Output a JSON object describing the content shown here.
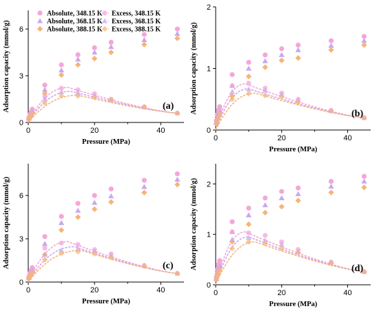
{
  "colors": {
    "348.15 K": "#f5a6d8",
    "368.15 K": "#c9a8ee",
    "388.15 K": "#f6b477"
  },
  "legend": {
    "items": [
      {
        "label": "Absolute, 348.15 K",
        "kind": "absolute",
        "temp": "348.15 K",
        "marker": "circle"
      },
      {
        "label": "Absolute, 368.15 K",
        "kind": "absolute",
        "temp": "368.15 K",
        "marker": "triangle"
      },
      {
        "label": "Absolute, 388.15 K",
        "kind": "absolute",
        "temp": "388.15 K",
        "marker": "diamond"
      },
      {
        "label": "Excess, 348.15 K",
        "kind": "excess",
        "temp": "348.15 K",
        "marker": "circle"
      },
      {
        "label": "Excess, 368.15 K",
        "kind": "excess",
        "temp": "368.15 K",
        "marker": "triangle"
      },
      {
        "label": "Excess, 388.15 K",
        "kind": "excess",
        "temp": "388.15 K",
        "marker": "diamond"
      }
    ]
  },
  "chart_data": [
    {
      "type": "scatter",
      "panel_label": "(a)",
      "xlabel": "Pressure (MPa)",
      "ylabel": "Adsorption capacity (mmol/g)",
      "xlim": [
        0,
        47
      ],
      "ylim": [
        0,
        7.2
      ],
      "xticks": [
        0,
        20,
        40
      ],
      "yticks": [
        0,
        3,
        6
      ],
      "legend_position": "top-left",
      "x": [
        0.2,
        0.5,
        0.8,
        1.2,
        5,
        10,
        15,
        20,
        25,
        35,
        45
      ],
      "series": [
        {
          "name": "Absolute, 348.15 K",
          "values": [
            0.3,
            0.5,
            0.65,
            0.85,
            2.4,
            3.7,
            4.35,
            4.8,
            5.15,
            5.65,
            6.0
          ]
        },
        {
          "name": "Absolute, 368.15 K",
          "values": [
            0.25,
            0.45,
            0.6,
            0.75,
            2.1,
            3.35,
            4.05,
            4.5,
            4.85,
            5.3,
            5.7
          ]
        },
        {
          "name": "Absolute, 388.15 K",
          "values": [
            0.2,
            0.4,
            0.5,
            0.65,
            1.85,
            3.05,
            3.7,
            4.1,
            4.5,
            5.0,
            5.4
          ]
        },
        {
          "name": "Excess, 348.15 K",
          "values": [
            0.3,
            0.5,
            0.6,
            0.75,
            1.65,
            2.2,
            2.1,
            1.85,
            1.5,
            1.0,
            0.6
          ]
        },
        {
          "name": "Excess, 368.15 K",
          "values": [
            0.25,
            0.4,
            0.55,
            0.65,
            1.5,
            1.95,
            1.9,
            1.75,
            1.45,
            1.0,
            0.6
          ]
        },
        {
          "name": "Excess, 388.15 K",
          "values": [
            0.2,
            0.35,
            0.45,
            0.55,
            1.25,
            1.7,
            1.7,
            1.6,
            1.45,
            1.0,
            0.6
          ]
        }
      ],
      "fit_peaks": {
        "348.15 K": [
          12,
          2.25
        ],
        "368.15 K": [
          13,
          2.0
        ],
        "388.15 K": [
          15,
          1.75
        ]
      }
    },
    {
      "type": "scatter",
      "panel_label": "(b)",
      "xlabel": "Pressure (MPa)",
      "ylabel": "Adsorption capacity (mmol/g)",
      "xlim": [
        0,
        47
      ],
      "ylim": [
        0,
        2
      ],
      "xticks": [
        0,
        20,
        40
      ],
      "yticks": [
        0,
        1,
        2
      ],
      "x": [
        0.2,
        0.5,
        0.8,
        1.2,
        5,
        10,
        15,
        20,
        25,
        35,
        45
      ],
      "series": [
        {
          "name": "Absolute, 348.15 K",
          "values": [
            0.15,
            0.25,
            0.32,
            0.38,
            0.9,
            1.1,
            1.22,
            1.32,
            1.38,
            1.45,
            1.52
          ]
        },
        {
          "name": "Absolute, 368.15 K",
          "values": [
            0.12,
            0.2,
            0.28,
            0.33,
            0.72,
            1.0,
            1.12,
            1.22,
            1.3,
            1.37,
            1.45
          ]
        },
        {
          "name": "Absolute, 388.15 K",
          "values": [
            0.1,
            0.17,
            0.23,
            0.28,
            0.55,
            0.87,
            1.02,
            1.13,
            1.17,
            1.3,
            1.38
          ]
        },
        {
          "name": "Excess, 348.15 K",
          "values": [
            0.15,
            0.24,
            0.3,
            0.35,
            0.72,
            0.76,
            0.68,
            0.6,
            0.5,
            0.32,
            0.2
          ]
        },
        {
          "name": "Excess, 368.15 K",
          "values": [
            0.12,
            0.2,
            0.26,
            0.3,
            0.62,
            0.66,
            0.64,
            0.58,
            0.48,
            0.31,
            0.2
          ]
        },
        {
          "name": "Excess, 388.15 K",
          "values": [
            0.1,
            0.16,
            0.21,
            0.26,
            0.5,
            0.59,
            0.56,
            0.54,
            0.45,
            0.31,
            0.2
          ]
        }
      ],
      "fit_peaks": {
        "348.15 K": [
          9,
          0.75
        ],
        "368.15 K": [
          10,
          0.67
        ],
        "388.15 K": [
          12,
          0.6
        ]
      }
    },
    {
      "type": "scatter",
      "panel_label": "(c)",
      "xlabel": "Pressure (MPa)",
      "ylabel": "Adsorption capacity (mmol/g)",
      "xlim": [
        0,
        47
      ],
      "ylim": [
        0,
        8.2
      ],
      "xticks": [
        0,
        20,
        40
      ],
      "yticks": [
        0,
        3,
        6
      ],
      "x": [
        0.2,
        0.5,
        0.8,
        1.2,
        5,
        10,
        15,
        20,
        25,
        35,
        45
      ],
      "series": [
        {
          "name": "Absolute, 348.15 K",
          "values": [
            0.35,
            0.6,
            0.8,
            1.0,
            3.15,
            4.55,
            5.45,
            6.0,
            6.45,
            7.05,
            7.5
          ]
        },
        {
          "name": "Absolute, 368.15 K",
          "values": [
            0.3,
            0.5,
            0.7,
            0.9,
            2.65,
            4.1,
            4.95,
            5.5,
            5.95,
            6.6,
            7.1
          ]
        },
        {
          "name": "Absolute, 388.15 K",
          "values": [
            0.25,
            0.45,
            0.6,
            0.75,
            1.9,
            3.6,
            4.5,
            5.05,
            5.55,
            6.2,
            6.75
          ]
        },
        {
          "name": "Excess, 348.15 K",
          "values": [
            0.35,
            0.55,
            0.75,
            0.9,
            2.35,
            2.7,
            2.6,
            2.25,
            1.95,
            1.15,
            0.6
          ]
        },
        {
          "name": "Excess, 368.15 K",
          "values": [
            0.3,
            0.5,
            0.65,
            0.8,
            1.9,
            2.2,
            2.3,
            2.15,
            1.85,
            1.15,
            0.6
          ]
        },
        {
          "name": "Excess, 388.15 K",
          "values": [
            0.25,
            0.4,
            0.55,
            0.65,
            1.55,
            2.0,
            2.1,
            1.95,
            1.7,
            1.1,
            0.6
          ]
        }
      ],
      "fit_peaks": {
        "348.15 K": [
          12,
          2.8
        ],
        "368.15 K": [
          14,
          2.45
        ],
        "388.15 K": [
          16,
          2.2
        ]
      }
    },
    {
      "type": "scatter",
      "panel_label": "(d)",
      "xlabel": "Pressure (MPa)",
      "ylabel": "Adsorption capacity (mmol/g)",
      "xlim": [
        0,
        47
      ],
      "ylim": [
        0,
        2.4
      ],
      "xticks": [
        0,
        20,
        40
      ],
      "yticks": [
        0,
        1,
        2
      ],
      "x": [
        0.2,
        0.5,
        0.8,
        1.2,
        5,
        10,
        15,
        20,
        25,
        35,
        45
      ],
      "series": [
        {
          "name": "Absolute, 348.15 K",
          "values": [
            0.15,
            0.3,
            0.4,
            0.48,
            1.25,
            1.52,
            1.72,
            1.85,
            1.92,
            2.05,
            2.15
          ]
        },
        {
          "name": "Absolute, 368.15 K",
          "values": [
            0.12,
            0.25,
            0.33,
            0.4,
            1.05,
            1.38,
            1.58,
            1.72,
            1.8,
            1.95,
            2.05
          ]
        },
        {
          "name": "Absolute, 388.15 K",
          "values": [
            0.1,
            0.2,
            0.27,
            0.33,
            0.85,
            1.2,
            1.43,
            1.55,
            1.67,
            1.83,
            1.93
          ]
        },
        {
          "name": "Excess, 348.15 K",
          "values": [
            0.15,
            0.28,
            0.36,
            0.43,
            1.05,
            1.03,
            0.98,
            0.85,
            0.7,
            0.45,
            0.26
          ]
        },
        {
          "name": "Excess, 368.15 K",
          "values": [
            0.12,
            0.23,
            0.3,
            0.36,
            0.9,
            0.93,
            0.88,
            0.8,
            0.66,
            0.45,
            0.26
          ]
        },
        {
          "name": "Excess, 388.15 K",
          "values": [
            0.1,
            0.18,
            0.24,
            0.29,
            0.72,
            0.85,
            0.82,
            0.72,
            0.64,
            0.43,
            0.26
          ]
        }
      ],
      "fit_peaks": {
        "348.15 K": [
          9,
          1.05
        ],
        "368.15 K": [
          10,
          0.95
        ],
        "388.15 K": [
          12,
          0.85
        ]
      }
    }
  ]
}
